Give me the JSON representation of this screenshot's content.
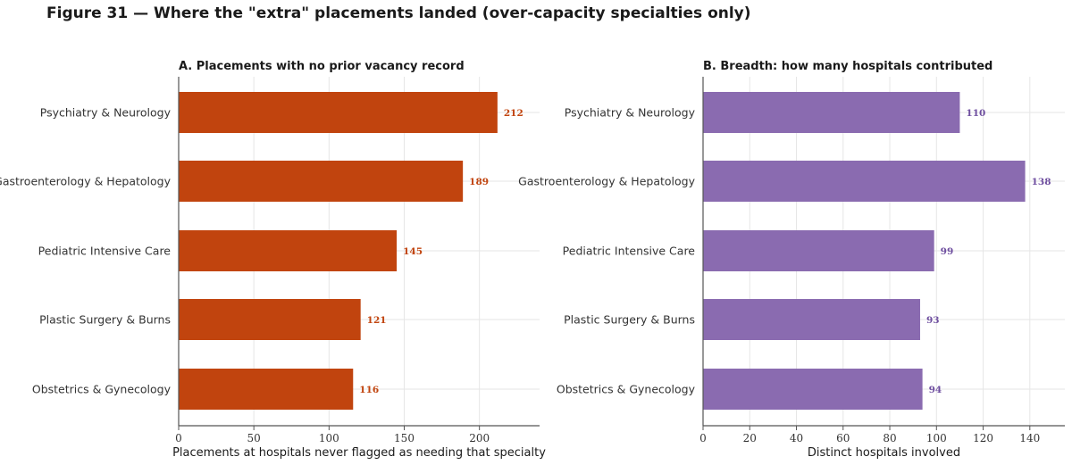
{
  "figure": {
    "title": "Figure 31 — Where the \"extra\" placements landed (over-capacity specialties only)"
  },
  "chart_data": [
    {
      "type": "bar",
      "orientation": "horizontal",
      "title": "A. Placements with no prior vacancy record",
      "xlabel": "Placements at hospitals never flagged as needing that specialty",
      "ylabel": "",
      "categories": [
        "Psychiatry & Neurology",
        "Gastroenterology & Hepatology",
        "Pediatric Intensive Care",
        "Plastic Surgery & Burns",
        "Obstetrics & Gynecology"
      ],
      "values": [
        212,
        189,
        145,
        121,
        116
      ],
      "xlim": [
        0,
        240
      ],
      "xticks": [
        0,
        50,
        100,
        150,
        200
      ],
      "color": "#c1440e",
      "grid": true
    },
    {
      "type": "bar",
      "orientation": "horizontal",
      "title": "B. Breadth: how many hospitals contributed",
      "xlabel": "Distinct hospitals involved",
      "ylabel": "",
      "categories": [
        "Psychiatry & Neurology",
        "Gastroenterology & Hepatology",
        "Pediatric Intensive Care",
        "Plastic Surgery & Burns",
        "Obstetrics & Gynecology"
      ],
      "values": [
        110,
        138,
        99,
        93,
        94
      ],
      "xlim": [
        0,
        155
      ],
      "xticks": [
        0,
        20,
        40,
        60,
        80,
        100,
        120,
        140
      ],
      "color": "#8a6bb0",
      "label_color": "#6f4fa0",
      "grid": true
    }
  ]
}
